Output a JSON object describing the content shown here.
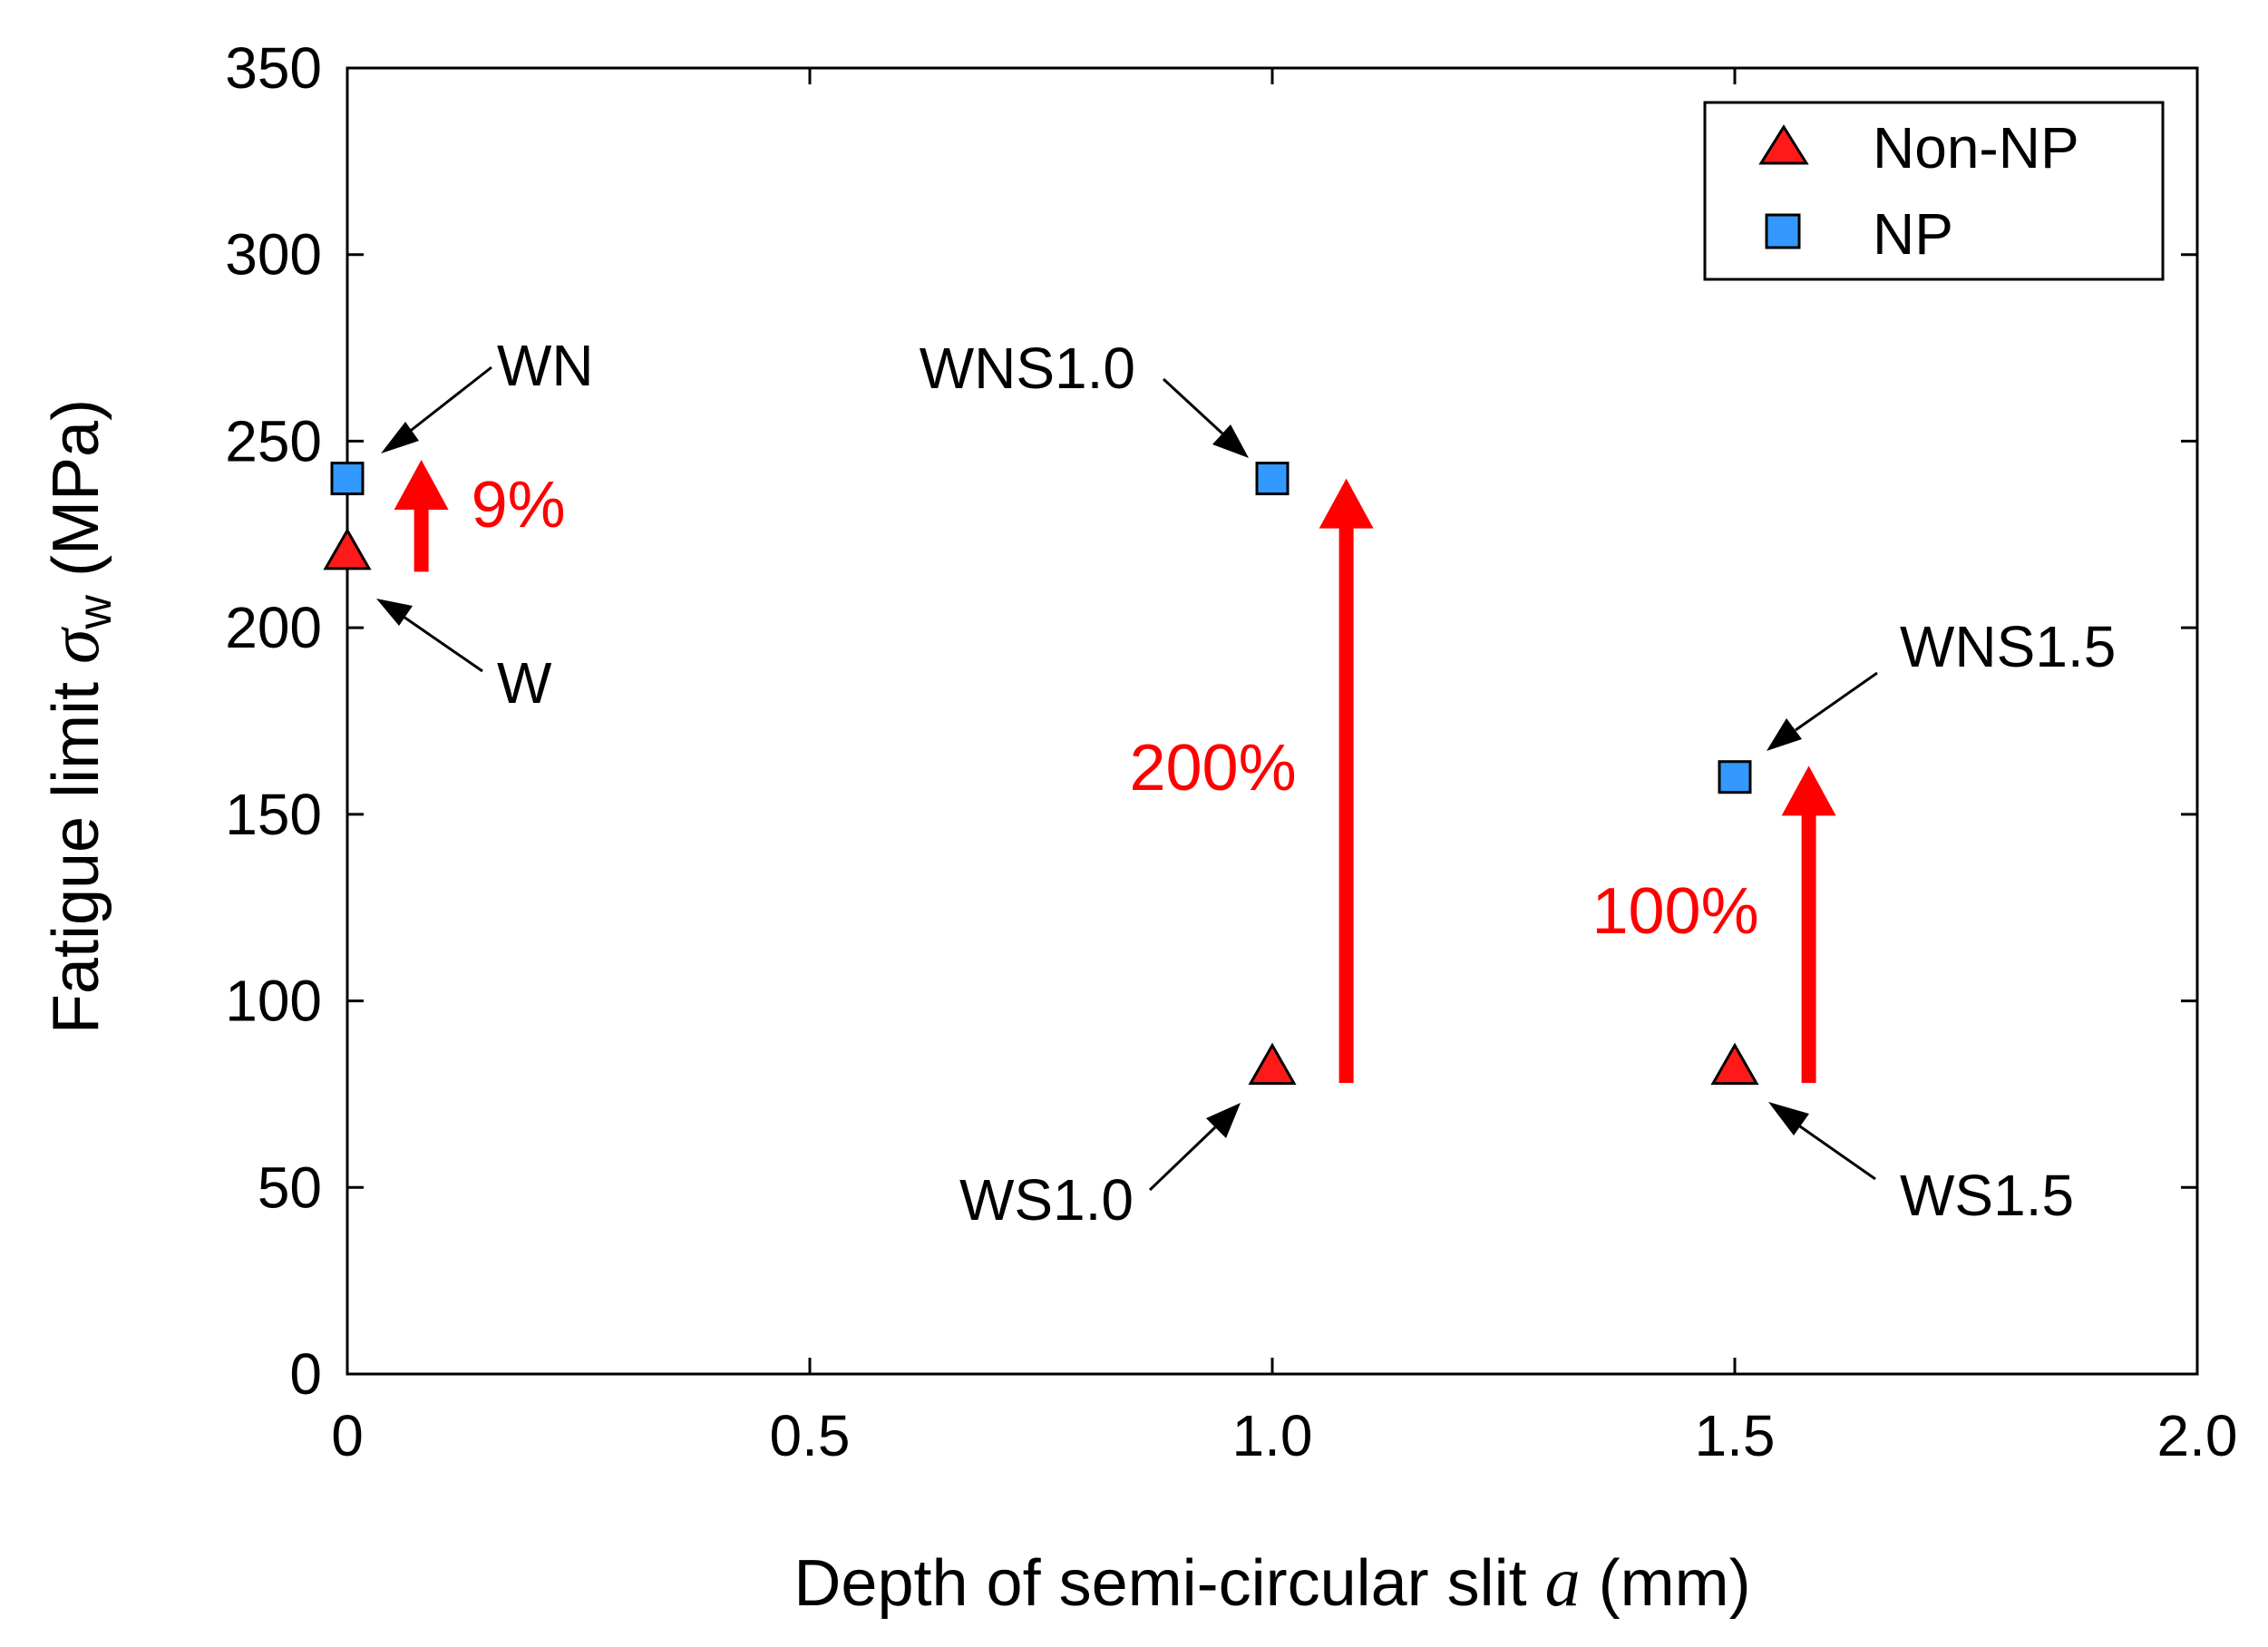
{
  "chart_data": {
    "type": "scatter",
    "title": "",
    "xlabel_main": "Depth of semi-circular slit ",
    "xlabel_symbol": "a",
    "xlabel_unit": " (mm)",
    "ylabel_main": "Fatigue limit ",
    "ylabel_symbol": "σ",
    "ylabel_subscript": "w",
    "ylabel_unit": " (MPa)",
    "xlim": [
      0,
      2.0
    ],
    "ylim": [
      0,
      350
    ],
    "xticks": [
      0,
      0.5,
      1.0,
      1.5,
      2.0
    ],
    "xtick_labels": [
      "0",
      "0.5",
      "1.0",
      "1.5",
      "2.0"
    ],
    "yticks": [
      0,
      50,
      100,
      150,
      200,
      250,
      300,
      350
    ],
    "ytick_labels": [
      "0",
      "50",
      "100",
      "150",
      "200",
      "250",
      "300",
      "350"
    ],
    "grid": false,
    "legend_position": "top-right",
    "series": [
      {
        "name": "Non-NP",
        "marker": "triangle",
        "color": "#ff1a1a",
        "points": [
          {
            "x": 0,
            "y": 220,
            "label": "W"
          },
          {
            "x": 1.0,
            "y": 82,
            "label": "WS1.0"
          },
          {
            "x": 1.5,
            "y": 82,
            "label": "WS1.5"
          }
        ]
      },
      {
        "name": "NP",
        "marker": "square",
        "color": "#3399ff",
        "points": [
          {
            "x": 0,
            "y": 240,
            "label": "WN"
          },
          {
            "x": 1.0,
            "y": 240,
            "label": "WNS1.0"
          },
          {
            "x": 1.5,
            "y": 160,
            "label": "WNS1.5"
          }
        ]
      }
    ],
    "improvements": [
      {
        "x": 0.08,
        "from": 215,
        "to": 245,
        "label": "9%"
      },
      {
        "x": 1.08,
        "from": 78,
        "to": 240,
        "label": "200%"
      },
      {
        "x": 1.58,
        "from": 78,
        "to": 163,
        "label": "100%"
      }
    ],
    "arrow_color": "#ff0000"
  }
}
